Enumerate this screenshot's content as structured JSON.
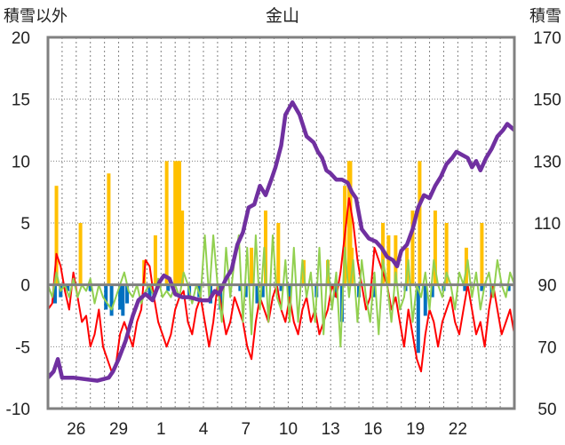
{
  "chart_data": {
    "type": "line",
    "title": "金山",
    "ylabel_left": "積雪以外",
    "ylabel_right": "積雪",
    "ylim_left": [
      -10,
      20
    ],
    "ylim_right": [
      50,
      170
    ],
    "yticks_left": [
      "20",
      "15",
      "10",
      "5",
      "0",
      "-5",
      "-10"
    ],
    "yticks_right": [
      "170",
      "150",
      "130",
      "110",
      "90",
      "70",
      "50"
    ],
    "xlim": [
      24,
      57
    ],
    "xticks": [
      {
        "pos": 26,
        "label": "26"
      },
      {
        "pos": 29,
        "label": "29"
      },
      {
        "pos": 32,
        "label": "1"
      },
      {
        "pos": 35,
        "label": "4"
      },
      {
        "pos": 38,
        "label": "7"
      },
      {
        "pos": 41,
        "label": "10"
      },
      {
        "pos": 44,
        "label": "13"
      },
      {
        "pos": 47,
        "label": "16"
      },
      {
        "pos": 50,
        "label": "19"
      },
      {
        "pos": 53,
        "label": "22"
      }
    ],
    "grid": true,
    "colors": {
      "snowfall_bar": "#ffc000",
      "negative_bar": "#0070c0",
      "red_line": "#ff0000",
      "green_line": "#92d050",
      "snow_depth_line": "#7030a0",
      "axis": "#808080"
    },
    "series": [
      {
        "name": "",
        "type": "bar",
        "axis": "left",
        "color": "#ffc000",
        "x": [
          24.6,
          26.3,
          28.3,
          30.8,
          31.6,
          32.4,
          33.0,
          33.2,
          33.3,
          33.5,
          38.4,
          39.4,
          40.3,
          42.1,
          43.8,
          45.0,
          45.3,
          45.4,
          45.5,
          47.7,
          48.1,
          48.6,
          49.4,
          49.8,
          50.3,
          51.4,
          52.2,
          53.6,
          54.7
        ],
        "values": [
          8,
          5,
          9,
          2,
          4,
          10,
          10,
          10,
          10,
          6,
          3,
          6,
          5,
          2,
          2,
          8,
          10,
          10,
          3,
          5,
          4,
          4,
          3,
          6,
          10,
          6,
          5,
          3,
          5
        ]
      },
      {
        "name": "",
        "type": "bar",
        "axis": "left",
        "color": "#0070c0",
        "x": [
          24.5,
          24.9,
          25.4,
          27.0,
          28.1,
          28.5,
          29.1,
          29.3,
          29.6,
          31.2,
          32.5,
          34.0,
          34.7,
          35.5,
          36.2,
          37.6,
          38.0,
          38.8,
          39.2,
          40.5,
          41.1,
          43.0,
          44.3,
          44.8,
          46.0,
          47.1,
          49.3,
          50.2,
          50.7,
          51.2,
          52.0,
          53.5,
          54.7,
          55.4,
          56.6
        ],
        "values": [
          -1.5,
          -1,
          -0.5,
          -0.5,
          -2,
          -2.5,
          -2,
          -2.5,
          -1.5,
          -1,
          -0.5,
          -1,
          -1,
          -1.5,
          -2,
          -0.5,
          -1,
          -1.5,
          -1,
          -0.5,
          -1,
          -1,
          -1,
          -3,
          -1,
          -1,
          -0.5,
          -5.5,
          -2.5,
          -1,
          -0.5,
          -0.5,
          -0.5,
          -1,
          -0.5
        ]
      },
      {
        "name": "",
        "type": "line",
        "axis": "left",
        "color": "#ff0000",
        "x": [
          24.0,
          24.3,
          24.6,
          24.9,
          25.2,
          25.5,
          25.8,
          26.1,
          26.4,
          26.7,
          27.0,
          27.3,
          27.6,
          27.9,
          28.2,
          28.5,
          28.8,
          29.1,
          29.4,
          29.7,
          30.0,
          30.3,
          30.6,
          30.9,
          31.2,
          31.5,
          31.8,
          32.1,
          32.4,
          32.7,
          33.0,
          33.3,
          33.6,
          33.9,
          34.2,
          34.5,
          34.8,
          35.1,
          35.4,
          35.7,
          36.0,
          36.3,
          36.6,
          36.9,
          37.2,
          37.5,
          37.8,
          38.1,
          38.4,
          38.7,
          39.0,
          39.3,
          39.6,
          39.9,
          40.2,
          40.5,
          40.8,
          41.1,
          41.4,
          41.7,
          42.0,
          42.3,
          42.6,
          42.9,
          43.2,
          43.5,
          43.8,
          44.1,
          44.4,
          44.7,
          45.0,
          45.3,
          45.6,
          45.9,
          46.2,
          46.5,
          46.8,
          47.1,
          47.4,
          47.7,
          48.0,
          48.3,
          48.6,
          48.9,
          49.2,
          49.5,
          49.8,
          50.1,
          50.4,
          50.7,
          51.0,
          51.3,
          51.6,
          51.9,
          52.2,
          52.5,
          52.8,
          53.1,
          53.4,
          53.7,
          54.0,
          54.3,
          54.6,
          54.9,
          55.2,
          55.5,
          55.8,
          56.1,
          56.4,
          56.7,
          57.0
        ],
        "values": [
          -2,
          -1.5,
          2.5,
          1.5,
          -0.5,
          -2,
          1,
          -1,
          -3,
          -2.5,
          -5,
          -4,
          -2,
          -5,
          -6,
          -7,
          -6.5,
          -4,
          -3,
          -4,
          -5,
          -3,
          -2,
          2,
          1.5,
          -1,
          -3,
          -4,
          -5,
          -4,
          -2,
          -1,
          -0.5,
          -3,
          -4,
          -2,
          -1,
          -3,
          -5,
          -3,
          0,
          -2,
          -4,
          -3,
          -1,
          -2,
          -3,
          -5,
          -6,
          -3,
          -1,
          -2,
          -3,
          -1,
          0,
          -2,
          -3,
          -1,
          -3,
          -4,
          -2,
          -1,
          -3,
          -2,
          -4,
          -3,
          -2,
          0,
          -1,
          1,
          4,
          7,
          5,
          2,
          0,
          -2,
          -1,
          3,
          2,
          1,
          0,
          -2,
          -1,
          -3,
          -5,
          -2,
          -4,
          -6,
          -7,
          -4,
          -2,
          -3,
          -5,
          -3,
          -2,
          -1,
          -3,
          -4,
          -2,
          0,
          -2,
          -4,
          -3,
          -5,
          -2,
          0,
          -2,
          -4,
          -3,
          -2,
          -4
        ]
      },
      {
        "name": "",
        "type": "line",
        "axis": "left",
        "color": "#92d050",
        "x": [
          24.0,
          24.3,
          24.6,
          24.9,
          25.2,
          25.5,
          25.8,
          26.1,
          26.4,
          26.7,
          27.0,
          27.3,
          27.6,
          27.9,
          28.2,
          28.5,
          28.8,
          29.1,
          29.4,
          29.7,
          30.0,
          30.3,
          30.6,
          30.9,
          31.2,
          31.5,
          31.8,
          32.1,
          32.4,
          32.7,
          33.0,
          33.3,
          33.6,
          33.9,
          34.2,
          34.5,
          34.8,
          35.1,
          35.4,
          35.7,
          36.0,
          36.3,
          36.6,
          36.9,
          37.2,
          37.5,
          37.8,
          38.1,
          38.4,
          38.7,
          39.0,
          39.3,
          39.6,
          39.9,
          40.2,
          40.5,
          40.8,
          41.1,
          41.4,
          41.7,
          42.0,
          42.3,
          42.6,
          42.9,
          43.2,
          43.5,
          43.8,
          44.1,
          44.4,
          44.7,
          45.0,
          45.3,
          45.6,
          45.9,
          46.2,
          46.5,
          46.8,
          47.1,
          47.4,
          47.7,
          48.0,
          48.3,
          48.6,
          48.9,
          49.2,
          49.5,
          49.8,
          50.1,
          50.4,
          50.7,
          51.0,
          51.3,
          51.6,
          51.9,
          52.2,
          52.5,
          52.8,
          53.1,
          53.4,
          53.7,
          54.0,
          54.3,
          54.6,
          54.9,
          55.2,
          55.5,
          55.8,
          56.1,
          56.4,
          56.7,
          57.0
        ],
        "values": [
          0,
          -1,
          1,
          -0.5,
          0,
          -1,
          0.5,
          -1,
          0,
          -0.5,
          0.5,
          -1.5,
          0,
          -1,
          -1.5,
          -2,
          -1,
          0,
          1,
          -0.5,
          -1,
          0,
          -1.5,
          -0.5,
          0,
          -1,
          0.5,
          -1,
          -0.5,
          -1,
          0,
          -1,
          1,
          0,
          -1.5,
          0,
          -1,
          4,
          -1,
          4,
          0,
          -3,
          3,
          -1,
          2,
          4,
          -3,
          3,
          -4,
          4,
          -2,
          3,
          -3,
          4,
          -1,
          -2,
          2,
          -3,
          3,
          -3,
          2,
          -1,
          1,
          -3,
          3,
          -4,
          2,
          -2,
          1,
          -5,
          3,
          -1,
          2,
          -3,
          2,
          -1,
          -3,
          1,
          -4,
          2,
          0,
          -3,
          1,
          -2,
          -1,
          2,
          -3,
          0,
          -1,
          1,
          -2,
          2,
          0,
          -1,
          1,
          0,
          -2,
          1,
          0,
          2,
          -1,
          1,
          -2,
          0,
          1,
          -1,
          2,
          0,
          -1,
          1,
          0
        ]
      },
      {
        "name": "",
        "type": "line",
        "axis": "right",
        "color": "#7030a0",
        "x": [
          24.0,
          24.4,
          24.7,
          25.0,
          25.8,
          27.5,
          28.3,
          28.6,
          29.0,
          29.5,
          30.0,
          30.4,
          30.9,
          31.4,
          31.9,
          32.2,
          32.6,
          33.0,
          33.5,
          34.0,
          34.8,
          35.4,
          35.8,
          36.1,
          36.6,
          37.0,
          37.4,
          37.8,
          38.2,
          38.6,
          39.0,
          39.4,
          39.8,
          40.1,
          40.5,
          40.8,
          41.3,
          41.8,
          42.3,
          42.8,
          43.1,
          43.4,
          43.7,
          44.0,
          44.4,
          44.8,
          45.2,
          45.5,
          45.8,
          46.2,
          46.7,
          47.2,
          47.6,
          48.0,
          48.4,
          48.7,
          49.0,
          49.4,
          49.8,
          50.2,
          50.6,
          51.0,
          51.4,
          51.8,
          52.2,
          52.6,
          52.9,
          53.3,
          53.7,
          54.0,
          54.3,
          54.6,
          55.0,
          55.4,
          55.8,
          56.2,
          56.5,
          57.0
        ],
        "values": [
          60,
          62,
          66,
          60,
          60,
          59,
          60,
          62,
          66,
          72,
          80,
          85,
          87,
          85,
          91,
          93,
          92,
          87,
          86,
          86,
          85,
          85,
          88,
          87,
          92,
          95,
          103,
          107,
          115,
          116,
          122,
          119,
          124,
          128,
          135,
          145,
          149,
          145,
          138,
          136,
          133,
          131,
          127,
          126,
          124,
          124,
          123,
          120,
          118,
          108,
          105,
          104,
          102,
          99,
          98,
          96,
          101,
          103,
          108,
          115,
          119,
          118,
          122,
          125,
          129,
          131,
          133,
          132,
          131,
          128,
          130,
          127,
          131,
          134,
          138,
          140,
          142,
          140
        ]
      }
    ]
  }
}
